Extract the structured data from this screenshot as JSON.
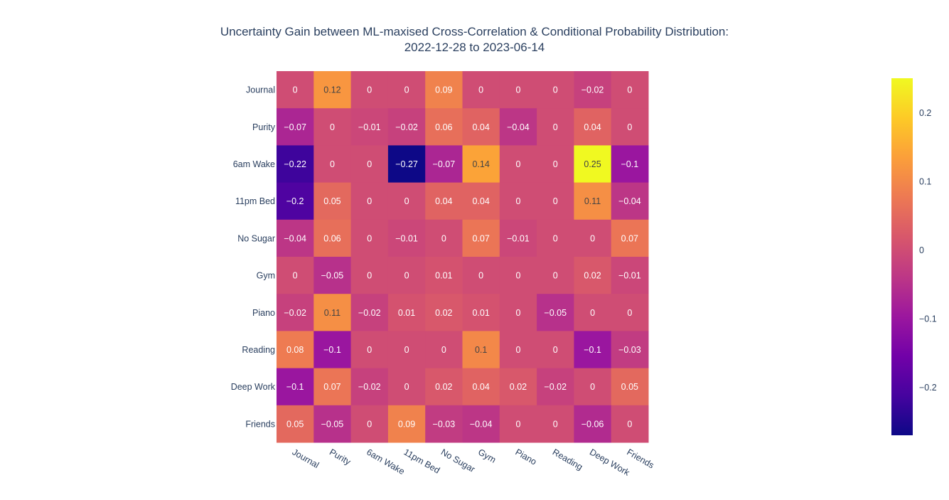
{
  "chart_data": {
    "type": "heatmap",
    "title_lines": [
      "Uncertainty Gain between ML-maxised Cross-Correlation & Conditional Probability Distribution:",
      "2022-12-28 to 2023-06-14"
    ],
    "x_categories": [
      "Journal",
      "Purity",
      "6am Wake",
      "11pm Bed",
      "No Sugar",
      "Gym",
      "Piano",
      "Reading",
      "Deep Work",
      "Friends"
    ],
    "y_categories": [
      "Journal",
      "Purity",
      "6am Wake",
      "11pm Bed",
      "No Sugar",
      "Gym",
      "Piano",
      "Reading",
      "Deep Work",
      "Friends"
    ],
    "z": [
      [
        0,
        0.12,
        0,
        0,
        0.09,
        0,
        0,
        0,
        -0.02,
        0
      ],
      [
        -0.07,
        0,
        -0.01,
        -0.02,
        0.06,
        0.04,
        -0.04,
        0,
        0.04,
        0
      ],
      [
        -0.22,
        0,
        0,
        -0.27,
        -0.07,
        0.14,
        0,
        0,
        0.25,
        -0.1
      ],
      [
        -0.2,
        0.05,
        0,
        0,
        0.04,
        0.04,
        0,
        0,
        0.11,
        -0.04
      ],
      [
        -0.04,
        0.06,
        0,
        -0.01,
        0,
        0.07,
        -0.01,
        0,
        0,
        0.07
      ],
      [
        0,
        -0.05,
        0,
        0,
        0.01,
        0,
        0,
        0,
        0.02,
        -0.01
      ],
      [
        -0.02,
        0.11,
        -0.02,
        0.01,
        0.02,
        0.01,
        0,
        -0.05,
        0,
        0
      ],
      [
        0.08,
        -0.1,
        0,
        0,
        0,
        0.1,
        0,
        0,
        -0.1,
        -0.03
      ],
      [
        -0.1,
        0.07,
        -0.02,
        0,
        0.02,
        0.04,
        0.02,
        -0.02,
        0,
        0.05
      ],
      [
        0.05,
        -0.05,
        0,
        0.09,
        -0.03,
        -0.04,
        0,
        0,
        -0.06,
        0
      ]
    ],
    "zmin": -0.27,
    "zmax": 0.25,
    "colorscale": [
      "#0d0887",
      "#46039f",
      "#7201a8",
      "#9c179e",
      "#bd3786",
      "#d8576b",
      "#ed7953",
      "#fb9f3a",
      "#fdca26",
      "#f0f921"
    ],
    "colorbar_ticks": [
      {
        "value": 0.2,
        "label": "0.2"
      },
      {
        "value": 0.1,
        "label": "0.1"
      },
      {
        "value": 0,
        "label": "0"
      },
      {
        "value": -0.1,
        "label": "−0.1"
      },
      {
        "value": -0.2,
        "label": "−0.2"
      }
    ]
  }
}
